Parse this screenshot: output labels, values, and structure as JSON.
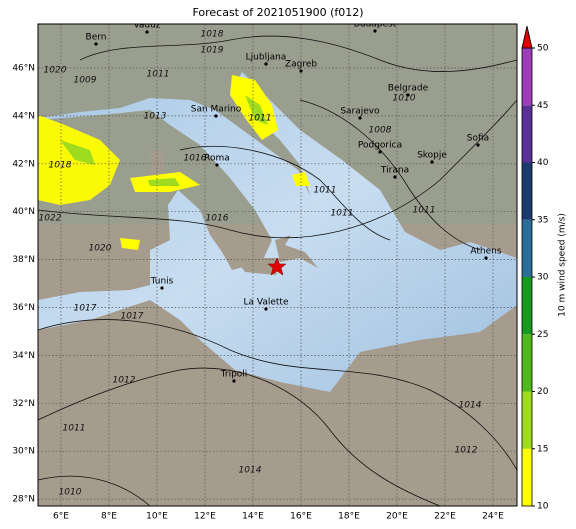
{
  "title": "Forecast of 2021051900 (f012)",
  "map": {
    "lon_labels": [
      "6°E",
      "8°E",
      "10°E",
      "12°E",
      "14°E",
      "16°E",
      "18°E",
      "20°E",
      "22°E",
      "24°E"
    ],
    "lat_labels": [
      "46°N",
      "44°N",
      "42°N",
      "40°N",
      "38°N",
      "36°N",
      "34°N",
      "32°N",
      "30°N",
      "28°N"
    ],
    "cities": [
      "Bern",
      "Vaduz",
      "Budapest",
      "Ljubljana",
      "Zagreb",
      "Belgrade",
      "San Marino",
      "Sarajevo",
      "Roma",
      "Podgorica",
      "Sofia",
      "Skopje",
      "Tirana",
      "Athens",
      "Tunis",
      "La Valette",
      "Tripoli"
    ],
    "isobar_labels": [
      "1018",
      "1019",
      "1020",
      "1011",
      "1013",
      "1011",
      "1009",
      "1010",
      "1008",
      "1018",
      "1016",
      "1016",
      "1011",
      "1011",
      "1011",
      "1022",
      "1020",
      "1017",
      "1017",
      "1012",
      "1011",
      "1014",
      "1012",
      "1014",
      "1010"
    ]
  },
  "colorbar": {
    "label": "10 m wind speed (m/s)",
    "ticks": [
      10,
      15,
      20,
      25,
      30,
      35,
      40,
      45,
      50
    ],
    "colors": [
      "#ffff00",
      "#9fdc1f",
      "#4fb81c",
      "#159a1e",
      "#2c6e9a",
      "#1d3a6e",
      "#5a2f96",
      "#9c3fb6"
    ],
    "over_color": "#e00000"
  }
}
